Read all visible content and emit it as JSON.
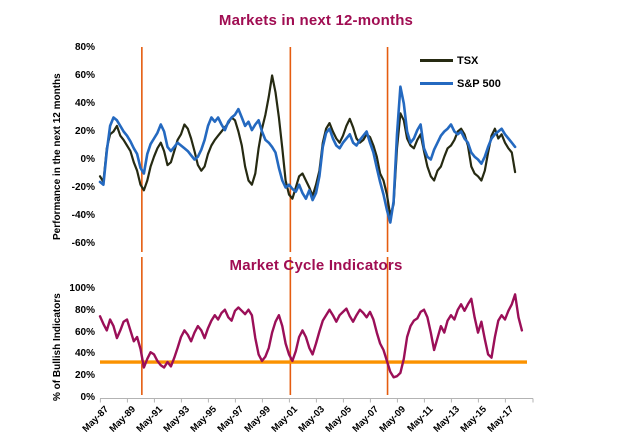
{
  "page": {
    "background": "#ffffff"
  },
  "colors": {
    "title": "#a00d52",
    "tsx_line": "#262a12",
    "sp500_line": "#2469c0",
    "mci_line": "#9b0f58",
    "event_vline": "#e55c0f",
    "threshold_hline": "#fb9200",
    "axis": "#b3b3b3",
    "tick_text": "#000000"
  },
  "chart_data": [
    {
      "type": "line",
      "title": "Markets in next 12-months",
      "ylabel": "Performance  in the next 12 months",
      "ylim": [
        -60,
        80
      ],
      "xlim": [
        1987.05,
        2019.4
      ],
      "grid": false,
      "legend_position": "top-right",
      "yticks": [
        {
          "v": 80,
          "label": "80%"
        },
        {
          "v": 60,
          "label": "60%"
        },
        {
          "v": 40,
          "label": "40%"
        },
        {
          "v": 20,
          "label": "20%"
        },
        {
          "v": 0,
          "label": "0%"
        },
        {
          "v": -20,
          "label": "-20%"
        },
        {
          "v": -40,
          "label": "-40%"
        },
        {
          "v": -60,
          "label": "-60%"
        }
      ],
      "x_start": 1987.3,
      "x_step": 0.25,
      "vlines": [
        1990.4,
        2001.4,
        2008.6
      ],
      "series": [
        {
          "name": "TSX",
          "color": "#262a12",
          "values": [
            -12,
            -16,
            8,
            18,
            20,
            24,
            17,
            14,
            10,
            6,
            -2,
            -8,
            -18,
            -22,
            -15,
            -5,
            2,
            8,
            12,
            6,
            -4,
            -2,
            6,
            14,
            18,
            25,
            22,
            15,
            6,
            -4,
            -8,
            -5,
            4,
            10,
            14,
            17,
            20,
            23,
            26,
            30,
            28,
            20,
            10,
            -5,
            -15,
            -18,
            -10,
            8,
            22,
            32,
            45,
            60,
            48,
            30,
            8,
            -15,
            -25,
            -28,
            -20,
            -12,
            -10,
            -15,
            -20,
            -26,
            -18,
            -8,
            12,
            22,
            26,
            20,
            15,
            12,
            17,
            24,
            29,
            23,
            15,
            12,
            14,
            18,
            16,
            10,
            2,
            -10,
            -15,
            -25,
            -40,
            -32,
            8,
            33,
            28,
            15,
            10,
            8,
            14,
            18,
            6,
            -5,
            -12,
            -15,
            -8,
            -5,
            2,
            8,
            10,
            14,
            20,
            22,
            18,
            10,
            -5,
            -10,
            -12,
            -15,
            -8,
            5,
            17,
            22,
            15,
            18,
            12,
            8,
            5,
            -9
          ]
        },
        {
          "name": "S&P 500",
          "color": "#2469c0",
          "values": [
            -16,
            -18,
            6,
            24,
            30,
            28,
            24,
            20,
            17,
            13,
            8,
            4,
            -6,
            -10,
            4,
            11,
            15,
            19,
            25,
            20,
            9,
            6,
            9,
            12,
            10,
            8,
            6,
            3,
            0,
            2,
            7,
            14,
            24,
            30,
            27,
            30,
            25,
            21,
            27,
            30,
            32,
            36,
            30,
            24,
            27,
            21,
            25,
            28,
            20,
            14,
            12,
            9,
            5,
            -6,
            -15,
            -20,
            -18,
            -21,
            -23,
            -18,
            -24,
            -28,
            -22,
            -29,
            -24,
            -12,
            9,
            19,
            22,
            15,
            10,
            8,
            12,
            15,
            18,
            12,
            10,
            14,
            17,
            20,
            12,
            5,
            -6,
            -16,
            -25,
            -36,
            -45,
            -30,
            18,
            52,
            40,
            20,
            12,
            15,
            21,
            25,
            8,
            2,
            0,
            7,
            12,
            17,
            20,
            22,
            25,
            20,
            18,
            20,
            15,
            12,
            5,
            2,
            0,
            -3,
            2,
            9,
            15,
            18,
            20,
            22,
            18,
            15,
            12,
            9
          ]
        }
      ]
    },
    {
      "type": "line",
      "title": "Market Cycle Indicators",
      "ylabel": "% of Bullish Indicators",
      "ylim": [
        0,
        100
      ],
      "xlim": [
        1987.05,
        2019.4
      ],
      "grid": false,
      "yticks": [
        {
          "v": 100,
          "label": "100%"
        },
        {
          "v": 80,
          "label": "80%"
        },
        {
          "v": 60,
          "label": "60%"
        },
        {
          "v": 40,
          "label": "40%"
        },
        {
          "v": 20,
          "label": "20%"
        },
        {
          "v": 0,
          "label": "0%"
        }
      ],
      "x_start": 1987.3,
      "x_step": 0.25,
      "vlines": [
        1990.4,
        2001.4,
        2008.6
      ],
      "hline": {
        "value": 33,
        "color": "#fb9200"
      },
      "xticks": {
        "labels": [
          "May-87",
          "May-89",
          "May-91",
          "May-93",
          "May-95",
          "May-97",
          "May-99",
          "May-01",
          "May-03",
          "May-05",
          "May-07",
          "May-09",
          "May-11",
          "May-13",
          "May-15",
          "May-17"
        ],
        "t_start": 1987.33,
        "t_step": 2
      },
      "series": [
        {
          "name": "% of Bullish Indicators",
          "color": "#9b0f58",
          "values": [
            75,
            68,
            62,
            72,
            66,
            55,
            62,
            70,
            72,
            62,
            52,
            56,
            45,
            28,
            36,
            42,
            40,
            34,
            30,
            28,
            33,
            29,
            37,
            46,
            56,
            62,
            58,
            52,
            60,
            66,
            62,
            55,
            64,
            71,
            76,
            72,
            78,
            81,
            74,
            71,
            80,
            83,
            80,
            77,
            81,
            76,
            55,
            40,
            34,
            38,
            46,
            60,
            70,
            76,
            66,
            50,
            40,
            34,
            43,
            56,
            62,
            56,
            46,
            40,
            50,
            61,
            71,
            76,
            81,
            76,
            70,
            76,
            79,
            82,
            75,
            70,
            76,
            81,
            78,
            74,
            79,
            72,
            60,
            50,
            44,
            34,
            24,
            19,
            20,
            23,
            36,
            56,
            66,
            71,
            73,
            79,
            81,
            74,
            60,
            44,
            55,
            66,
            60,
            71,
            76,
            72,
            81,
            86,
            80,
            86,
            91,
            74,
            60,
            70,
            54,
            40,
            37,
            56,
            71,
            76,
            72,
            80,
            86,
            95,
            74,
            62
          ]
        }
      ]
    }
  ]
}
